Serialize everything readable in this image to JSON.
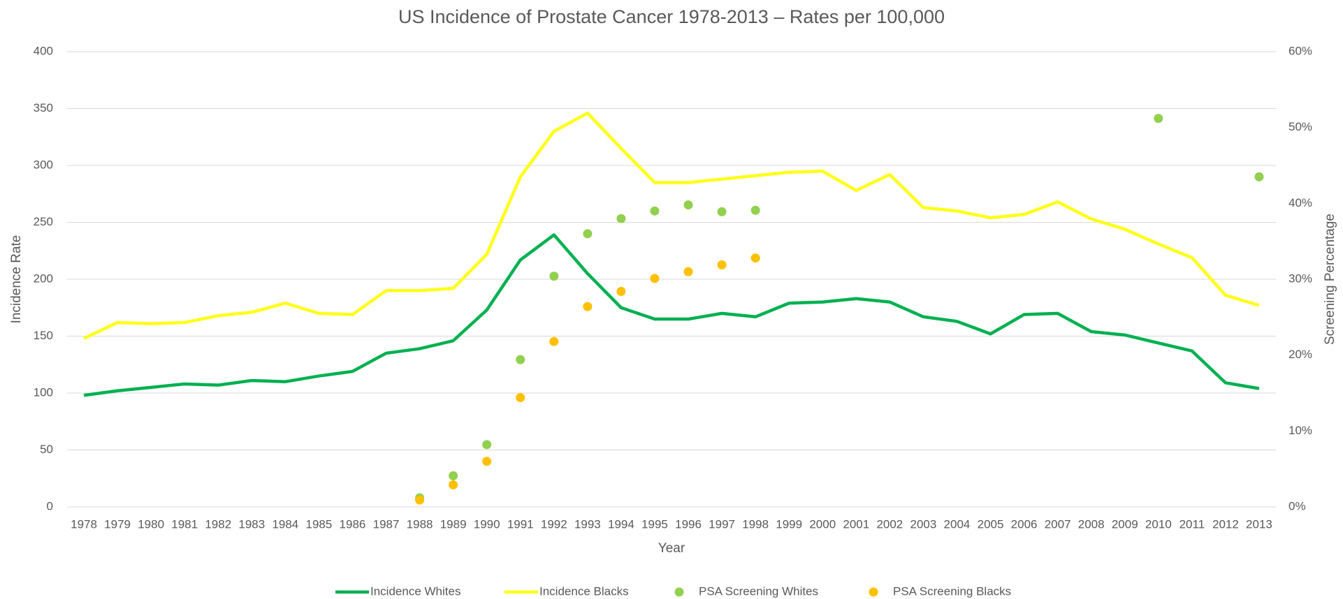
{
  "chart_data": {
    "type": "line",
    "title": "US Incidence of Prostate Cancer 1978-2013 – Rates per 100,000",
    "x_label": "Year",
    "y_label": "Incidence Rate",
    "y2_label": "Screening Percentage",
    "categories": [
      "1978",
      "1979",
      "1980",
      "1981",
      "1982",
      "1983",
      "1984",
      "1985",
      "1986",
      "1987",
      "1988",
      "1989",
      "1990",
      "1991",
      "1992",
      "1993",
      "1994",
      "1995",
      "1996",
      "1997",
      "1998",
      "1999",
      "2000",
      "2001",
      "2002",
      "2003",
      "2004",
      "2005",
      "2006",
      "2007",
      "2008",
      "2009",
      "2010",
      "2011",
      "2012",
      "2013"
    ],
    "series": [
      {
        "name": "Incidence Whites",
        "color": "#00b050",
        "mode": "line",
        "values": [
          98,
          102,
          105,
          108,
          107,
          111,
          110,
          115,
          119,
          135,
          139,
          146,
          173,
          217,
          239,
          205,
          175,
          165,
          165,
          170,
          167,
          179,
          180,
          183,
          180,
          167,
          163,
          152,
          169,
          170,
          154,
          151,
          144,
          137,
          109,
          104
        ]
      },
      {
        "name": "Incidence Blacks",
        "color": "#ffff1a",
        "mode": "line",
        "values": [
          148,
          162,
          161,
          162,
          168,
          171,
          179,
          170,
          169,
          190,
          190,
          192,
          222,
          290,
          330,
          346,
          315,
          285,
          285,
          288,
          291,
          294,
          295,
          278,
          292,
          263,
          260,
          254,
          257,
          268,
          253,
          244,
          231,
          219,
          186,
          177
        ]
      },
      {
        "name": "PSA Screening Whites",
        "color": "#92d050",
        "mode": "markers",
        "axis": "y2",
        "values": [
          null,
          null,
          null,
          null,
          null,
          null,
          null,
          null,
          null,
          null,
          1.2,
          4.1,
          8.2,
          19.4,
          30.4,
          36.0,
          38.0,
          39.0,
          39.8,
          38.9,
          39.1,
          null,
          null,
          null,
          null,
          null,
          null,
          null,
          null,
          null,
          null,
          null,
          51.2,
          null,
          null,
          43.5
        ]
      },
      {
        "name": "PSA Screening Blacks",
        "color": "#ffc000",
        "mode": "markers",
        "axis": "y2",
        "values": [
          null,
          null,
          null,
          null,
          null,
          null,
          null,
          null,
          null,
          null,
          0.9,
          2.9,
          6.0,
          14.4,
          21.8,
          26.4,
          28.4,
          30.1,
          31.0,
          31.9,
          32.8,
          null,
          null,
          null,
          null,
          null,
          null,
          null,
          null,
          null,
          null,
          null,
          null,
          null,
          null,
          null
        ]
      }
    ],
    "ylim": [
      0,
      400
    ],
    "yticks": [
      0,
      50,
      100,
      150,
      200,
      250,
      300,
      350,
      400
    ],
    "y2lim": [
      0,
      60
    ],
    "y2ticks": [
      {
        "value": 0,
        "label": "0%"
      },
      {
        "value": 10,
        "label": "10%"
      },
      {
        "value": 20,
        "label": "20%"
      },
      {
        "value": 30,
        "label": "30%"
      },
      {
        "value": 40,
        "label": "40%"
      },
      {
        "value": 50,
        "label": "50%"
      },
      {
        "value": 60,
        "label": "60%"
      }
    ],
    "grid": true,
    "legend": "bottom"
  }
}
